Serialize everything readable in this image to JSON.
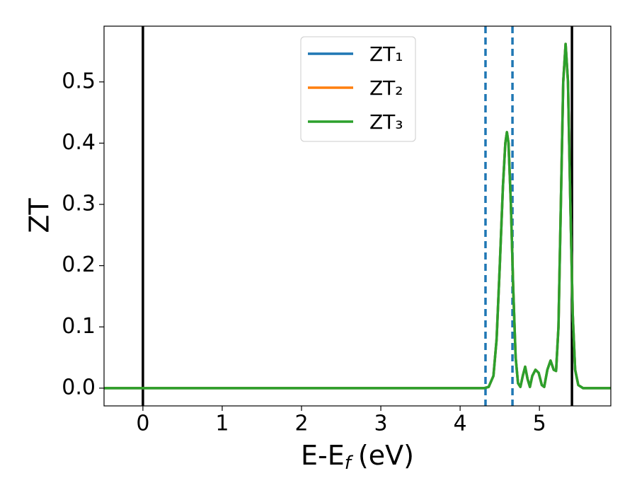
{
  "chart_data": {
    "type": "line",
    "x_label": {
      "main": "E-E",
      "subscript": "f",
      "rest": "(eV)"
    },
    "y_label": "ZT",
    "x": [
      -0.5,
      4.2,
      4.3,
      4.36,
      4.42,
      4.46,
      4.5,
      4.54,
      4.57,
      4.59,
      4.61,
      4.64,
      4.67,
      4.7,
      4.73,
      4.76,
      4.79,
      4.82,
      4.85,
      4.88,
      4.91,
      4.95,
      4.99,
      5.03,
      5.06,
      5.1,
      5.14,
      5.18,
      5.21,
      5.24,
      5.27,
      5.3,
      5.33,
      5.36,
      5.39,
      5.42,
      5.45,
      5.49,
      5.55,
      5.9
    ],
    "series": [
      {
        "name": "ZT₁",
        "color": "#1f77b4",
        "values": [
          0,
          0,
          0,
          0.002,
          0.02,
          0.08,
          0.2,
          0.33,
          0.4,
          0.418,
          0.4,
          0.3,
          0.16,
          0.05,
          0.008,
          0.002,
          0.02,
          0.035,
          0.015,
          0.002,
          0.02,
          0.03,
          0.025,
          0.005,
          0.002,
          0.03,
          0.045,
          0.03,
          0.028,
          0.1,
          0.3,
          0.5,
          0.562,
          0.5,
          0.3,
          0.12,
          0.03,
          0.005,
          0,
          0
        ]
      },
      {
        "name": "ZT₂",
        "color": "#ff7f0e",
        "values": [
          0,
          0,
          0,
          0.002,
          0.02,
          0.08,
          0.2,
          0.33,
          0.4,
          0.418,
          0.4,
          0.3,
          0.16,
          0.05,
          0.008,
          0.002,
          0.02,
          0.035,
          0.015,
          0.002,
          0.02,
          0.03,
          0.025,
          0.005,
          0.002,
          0.03,
          0.045,
          0.03,
          0.028,
          0.1,
          0.3,
          0.5,
          0.562,
          0.5,
          0.3,
          0.12,
          0.03,
          0.005,
          0,
          0
        ]
      },
      {
        "name": "ZT₃",
        "color": "#2ca02c",
        "values": [
          0,
          0,
          0,
          0.002,
          0.02,
          0.08,
          0.2,
          0.33,
          0.4,
          0.418,
          0.4,
          0.3,
          0.16,
          0.05,
          0.008,
          0.002,
          0.02,
          0.035,
          0.015,
          0.002,
          0.02,
          0.03,
          0.025,
          0.005,
          0.002,
          0.03,
          0.045,
          0.03,
          0.028,
          0.1,
          0.3,
          0.5,
          0.562,
          0.5,
          0.3,
          0.12,
          0.03,
          0.005,
          0,
          0
        ]
      }
    ],
    "vlines": [
      {
        "x": 0,
        "color": "#000000",
        "style": "solid"
      },
      {
        "x": 5.41,
        "color": "#000000",
        "style": "solid"
      },
      {
        "x": 4.32,
        "color": "#1f77b4",
        "style": "dashed"
      },
      {
        "x": 4.66,
        "color": "#1f77b4",
        "style": "dashed"
      }
    ],
    "xlim": [
      -0.49,
      5.9
    ],
    "ylim": [
      -0.029,
      0.591
    ],
    "xticks": [
      0,
      1,
      2,
      3,
      4,
      5
    ],
    "yticks": [
      {
        "value": 0,
        "label": "0.0"
      },
      {
        "value": 0.1,
        "label": "0.1"
      },
      {
        "value": 0.2,
        "label": "0.2"
      },
      {
        "value": 0.3,
        "label": "0.3"
      },
      {
        "value": 0.4,
        "label": "0.4"
      },
      {
        "value": 0.5,
        "label": "0.5"
      }
    ],
    "grid": false,
    "legend": "upper center"
  }
}
